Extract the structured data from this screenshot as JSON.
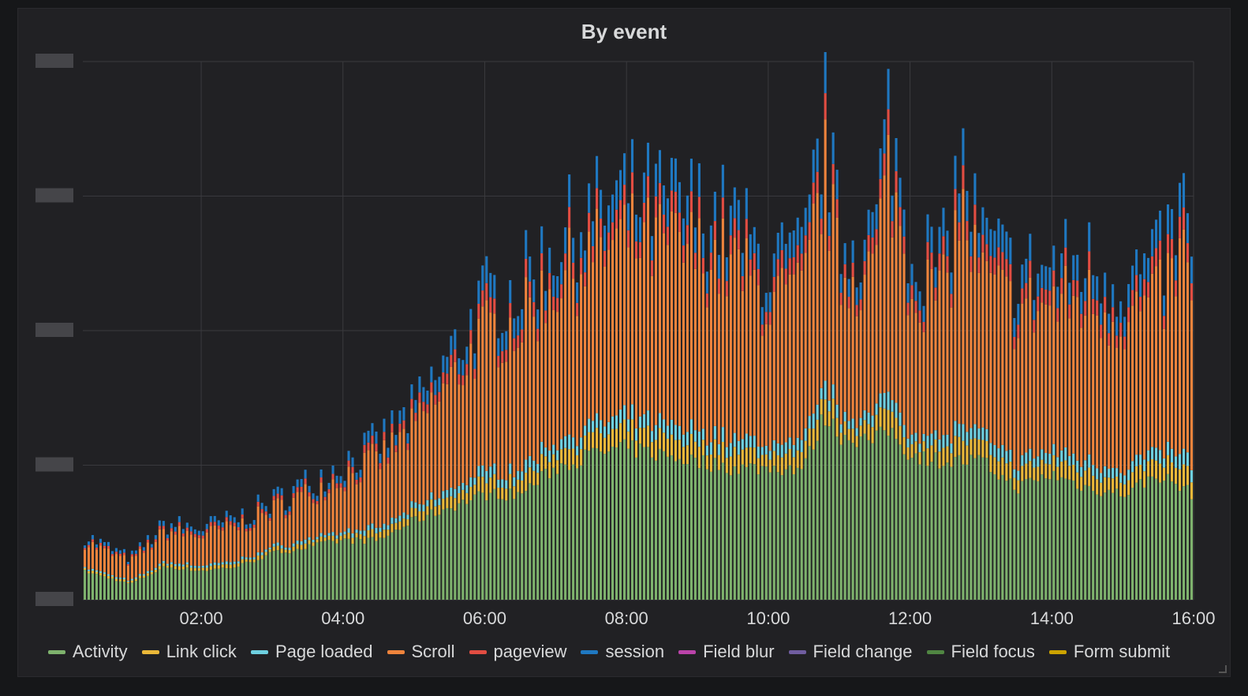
{
  "panel": {
    "title": "By event"
  },
  "chart_data": {
    "type": "bar",
    "stacked": true,
    "title": "By event",
    "grid": true,
    "legend_position": "bottom",
    "x_ticks": [
      "02:00",
      "04:00",
      "06:00",
      "08:00",
      "10:00",
      "12:00",
      "14:00",
      "16:00"
    ],
    "x_range_hours": [
      0.33,
      16.0
    ],
    "ylim": [
      0,
      4
    ],
    "y_gridlines": [
      0,
      1,
      2,
      3,
      4
    ],
    "envelope_total": [
      [
        0.33,
        0.5
      ],
      [
        1.0,
        0.32
      ],
      [
        1.5,
        0.58
      ],
      [
        2.0,
        0.55
      ],
      [
        2.5,
        0.62
      ],
      [
        3.0,
        0.75
      ],
      [
        3.5,
        0.9
      ],
      [
        4.0,
        1.05
      ],
      [
        4.5,
        1.2
      ],
      [
        5.0,
        1.45
      ],
      [
        5.5,
        1.85
      ],
      [
        6.0,
        2.3
      ],
      [
        6.5,
        2.4
      ],
      [
        7.0,
        2.75
      ],
      [
        7.5,
        2.95
      ],
      [
        8.0,
        3.1
      ],
      [
        8.5,
        3.05
      ],
      [
        9.0,
        3.0
      ],
      [
        9.5,
        2.9
      ],
      [
        10.0,
        2.55
      ],
      [
        10.5,
        2.6
      ],
      [
        10.8,
        3.7
      ],
      [
        11.0,
        2.75
      ],
      [
        11.5,
        2.8
      ],
      [
        11.7,
        3.75
      ],
      [
        12.0,
        2.7
      ],
      [
        12.5,
        2.6
      ],
      [
        12.7,
        3.4
      ],
      [
        13.0,
        2.75
      ],
      [
        13.5,
        2.5
      ],
      [
        14.0,
        2.55
      ],
      [
        14.5,
        2.6
      ],
      [
        15.0,
        2.45
      ],
      [
        15.5,
        2.55
      ],
      [
        15.85,
        3.0
      ],
      [
        16.0,
        2.75
      ]
    ],
    "envelope_activity": [
      [
        0.33,
        0.22
      ],
      [
        1.0,
        0.12
      ],
      [
        1.5,
        0.25
      ],
      [
        2.0,
        0.22
      ],
      [
        2.5,
        0.25
      ],
      [
        3.0,
        0.35
      ],
      [
        3.5,
        0.4
      ],
      [
        4.0,
        0.45
      ],
      [
        4.5,
        0.45
      ],
      [
        5.0,
        0.6
      ],
      [
        5.5,
        0.7
      ],
      [
        6.0,
        0.8
      ],
      [
        6.5,
        0.8
      ],
      [
        7.0,
        1.0
      ],
      [
        7.5,
        1.1
      ],
      [
        8.0,
        1.15
      ],
      [
        8.5,
        1.1
      ],
      [
        9.0,
        1.05
      ],
      [
        9.5,
        1.0
      ],
      [
        10.0,
        1.0
      ],
      [
        10.5,
        1.0
      ],
      [
        10.8,
        1.4
      ],
      [
        11.0,
        1.25
      ],
      [
        11.5,
        1.2
      ],
      [
        11.7,
        1.3
      ],
      [
        12.0,
        1.1
      ],
      [
        12.5,
        1.05
      ],
      [
        13.0,
        1.05
      ],
      [
        13.5,
        0.85
      ],
      [
        14.0,
        0.95
      ],
      [
        14.5,
        0.85
      ],
      [
        15.0,
        0.8
      ],
      [
        15.5,
        0.95
      ],
      [
        16.0,
        0.8
      ]
    ],
    "series": [
      {
        "name": "Activity",
        "color": "#7eb26d",
        "share": "green base"
      },
      {
        "name": "Link click",
        "color": "#eab839",
        "share": "small"
      },
      {
        "name": "Page loaded",
        "color": "#6ed0e0",
        "share": "small"
      },
      {
        "name": "Scroll",
        "color": "#ef843c",
        "share": "largest"
      },
      {
        "name": "pageview",
        "color": "#e24d42",
        "share": "small"
      },
      {
        "name": "session",
        "color": "#1f78c1",
        "share": "small"
      },
      {
        "name": "Field blur",
        "color": "#ba43a9",
        "share": "trace"
      },
      {
        "name": "Field change",
        "color": "#705da0",
        "share": "trace"
      },
      {
        "name": "Field focus",
        "color": "#508642",
        "share": "trace"
      },
      {
        "name": "Form submit",
        "color": "#cca300",
        "share": "trace"
      }
    ]
  }
}
